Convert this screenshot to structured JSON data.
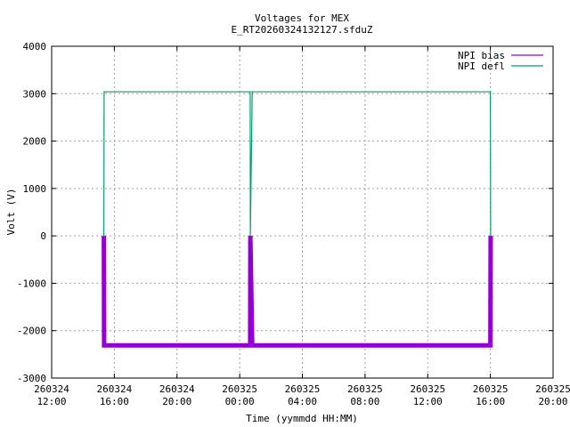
{
  "chart_data": {
    "type": "line",
    "title": "Voltages for MEX",
    "subtitle": "E_RT20260324132127.sfduZ",
    "xlabel": "Time (yymmdd HH:MM)",
    "ylabel": "Volt (V)",
    "xlim": [
      "2026-03-24 12:00",
      "2026-03-25 20:00"
    ],
    "ylim": [
      -3000,
      4000
    ],
    "grid": true,
    "legend_position": "top-right",
    "x_ticks": [
      {
        "date": "260324",
        "time": "12:00"
      },
      {
        "date": "260324",
        "time": "16:00"
      },
      {
        "date": "260324",
        "time": "20:00"
      },
      {
        "date": "260325",
        "time": "00:00"
      },
      {
        "date": "260325",
        "time": "04:00"
      },
      {
        "date": "260325",
        "time": "08:00"
      },
      {
        "date": "260325",
        "time": "12:00"
      },
      {
        "date": "260325",
        "time": "16:00"
      },
      {
        "date": "260325",
        "time": "20:00"
      }
    ],
    "y_ticks": [
      "-3000",
      "-2000",
      "-1000",
      "0",
      "1000",
      "2000",
      "3000",
      "4000"
    ],
    "series": [
      {
        "name": "NPI bias",
        "color": "#9400d3",
        "x": [
          "2026-03-24 15:20",
          "2026-03-24 15:21",
          "2026-03-25 00:40",
          "2026-03-25 00:41",
          "2026-03-25 00:48",
          "2026-03-25 16:00",
          "2026-03-25 16:01"
        ],
        "y": [
          0,
          -2310,
          -2310,
          0,
          -2310,
          -2310,
          0
        ]
      },
      {
        "name": "NPI defl",
        "color": "#009e73",
        "x": [
          "2026-03-24 15:20",
          "2026-03-24 15:21",
          "2026-03-25 00:40",
          "2026-03-25 00:41",
          "2026-03-25 00:48",
          "2026-03-25 16:00",
          "2026-03-25 16:01"
        ],
        "y": [
          0,
          3040,
          3040,
          0,
          3040,
          3040,
          0
        ]
      }
    ]
  }
}
